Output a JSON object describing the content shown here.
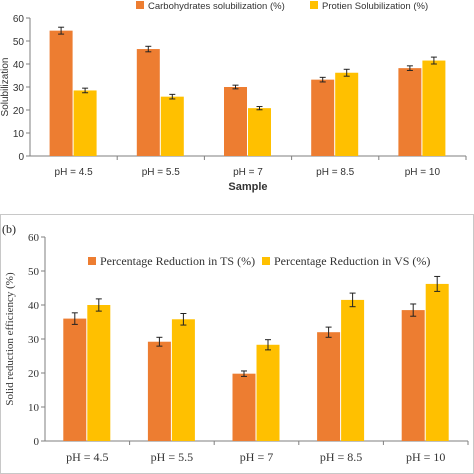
{
  "chart_data": [
    {
      "type": "bar",
      "panel_label": "",
      "categories": [
        "pH = 4.5",
        "pH = 5.5",
        "pH = 7",
        "pH = 8.5",
        "pH = 10"
      ],
      "series": [
        {
          "name": "Carbohydrates solubilization (%)",
          "values": [
            54.5,
            46.5,
            30.0,
            33.2,
            38.2
          ],
          "errors": [
            1.5,
            1.2,
            0.8,
            1.0,
            1.0
          ],
          "color": "#ED7D31"
        },
        {
          "name": "Protien Solubilization (%)",
          "values": [
            28.5,
            25.8,
            20.8,
            36.2,
            41.5
          ],
          "errors": [
            1.0,
            1.0,
            0.7,
            1.5,
            1.5
          ],
          "color": "#FFC000"
        }
      ],
      "xlabel": "Sample",
      "ylabel": "Solubilization",
      "ylim": [
        0,
        60
      ],
      "yticks": [
        0,
        10,
        20,
        30,
        40,
        50,
        60
      ],
      "legend": "top-center",
      "grid": false
    },
    {
      "type": "bar",
      "panel_label": "(b)",
      "categories": [
        "pH = 4.5",
        "pH = 5.5",
        "pH = 7",
        "pH = 8.5",
        "pH = 10"
      ],
      "series": [
        {
          "name": "Percentage Reduction in TS (%)",
          "values": [
            36.0,
            29.2,
            19.8,
            32.0,
            38.5
          ],
          "errors": [
            1.7,
            1.3,
            0.8,
            1.5,
            1.8
          ],
          "color": "#ED7D31"
        },
        {
          "name": "Percentage Reduction in VS (%)",
          "values": [
            40.0,
            35.8,
            28.3,
            41.5,
            46.2
          ],
          "errors": [
            1.8,
            1.7,
            1.5,
            2.0,
            2.2
          ],
          "color": "#FFC000"
        }
      ],
      "xlabel": "",
      "ylabel": "Solid reduction efficiency (%)",
      "ylim": [
        0,
        60
      ],
      "yticks": [
        0,
        10,
        20,
        30,
        40,
        50,
        60
      ],
      "legend": "top-center",
      "grid": false
    }
  ]
}
